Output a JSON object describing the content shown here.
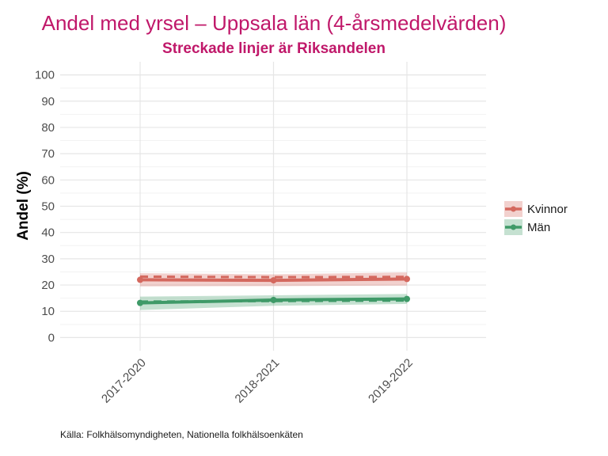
{
  "chart_data": {
    "type": "line",
    "title": "Andel med yrsel – Uppsala län (4-årsmedelvärden)",
    "subtitle": "Streckade linjer är Riksandelen",
    "ylabel": "Andel (%)",
    "xlabel": "",
    "categories": [
      "2017-2020",
      "2018-2021",
      "2019-2022"
    ],
    "ylim": [
      -5,
      105
    ],
    "yticks": [
      0,
      10,
      20,
      30,
      40,
      50,
      60,
      70,
      80,
      90,
      100
    ],
    "grid": true,
    "legend_position": "right",
    "series": [
      {
        "name": "Kvinnor",
        "color": "#d4685e",
        "values": [
          22.0,
          21.8,
          22.3
        ],
        "ci_lower": [
          19.5,
          19.6,
          19.8
        ],
        "ci_upper": [
          24.5,
          24.1,
          24.8
        ],
        "national_values": [
          23.2,
          23.0,
          23.1
        ]
      },
      {
        "name": "Män",
        "color": "#3f9a68",
        "values": [
          13.2,
          14.3,
          14.7
        ],
        "ci_lower": [
          10.5,
          12.1,
          12.8
        ],
        "ci_upper": [
          15.6,
          16.1,
          16.6
        ],
        "national_values": [
          13.7,
          13.9,
          14.1
        ]
      }
    ],
    "caption": "Källa: Folkhälsomyndigheten, Nationella folkhälsoenkäten"
  }
}
